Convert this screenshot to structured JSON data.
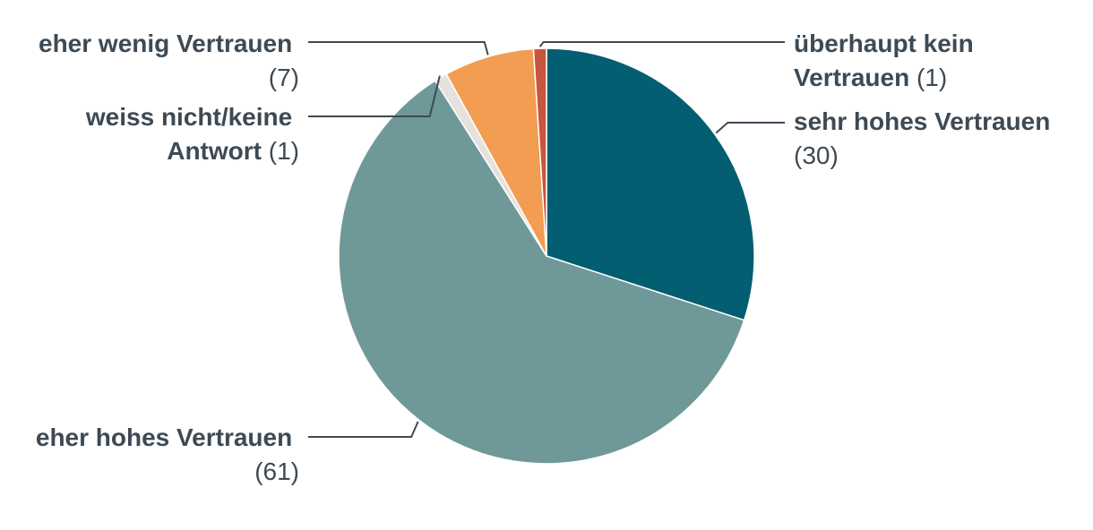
{
  "chart_data": {
    "type": "pie",
    "slices": [
      {
        "label": "sehr hohes Vertrauen",
        "value": 30,
        "value_text": "(30)",
        "color": "#025e70"
      },
      {
        "label": "eher hohes Vertrauen",
        "value": 61,
        "value_text": "(61)",
        "color": "#6f9999"
      },
      {
        "label": "weiss nicht/keine Antwort",
        "label_lines": [
          "weiss nicht/keine",
          "Antwort"
        ],
        "value": 1,
        "value_text": "(1)",
        "color": "#e6e1dc"
      },
      {
        "label": "eher wenig Vertrauen",
        "value": 7,
        "value_text": "(7)",
        "color": "#f29d52"
      },
      {
        "label": "überhaupt kein Vertrauen",
        "label_lines": [
          "überhaupt kein",
          "Vertrauen"
        ],
        "value": 1,
        "value_text": "(1)",
        "color": "#c8553d"
      }
    ],
    "start_angle_deg": 0,
    "direction": "clockwise"
  }
}
